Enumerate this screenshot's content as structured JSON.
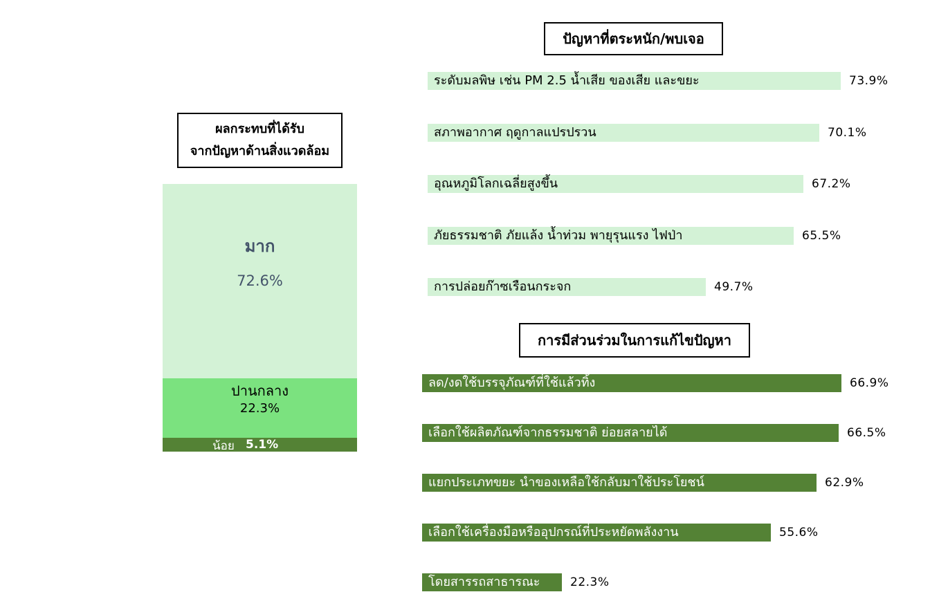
{
  "impact": {
    "title_line1": "ผลกระทบที่ได้รับ",
    "title_line2": "จากปัญหาด้านสิ่งแวดล้อม"
  },
  "problems": {
    "title": "ปัญหาที่ตระหนัก/พบเจอ"
  },
  "participation": {
    "title": "การมีส่วนร่วมในการแก้ไขปัญหา"
  },
  "colors": {
    "light_green": "#d3f2d6",
    "mid_green": "#7be27f",
    "dark_green": "#548235",
    "slate_text": "#44546a"
  },
  "chart_data": [
    {
      "type": "bar",
      "stacked": true,
      "orientation": "vertical",
      "title": "ผลกระทบที่ได้รับ จากปัญหาด้านสิ่งแวดล้อม",
      "series": [
        {
          "name": "มาก",
          "value": 72.6,
          "value_label": "72.6%",
          "color": "#d3f2d6"
        },
        {
          "name": "ปานกลาง",
          "value": 22.3,
          "value_label": "22.3%",
          "color": "#7be27f"
        },
        {
          "name": "น้อย",
          "value": 5.1,
          "value_label": "5.1%",
          "color": "#548235"
        }
      ]
    },
    {
      "type": "bar",
      "orientation": "horizontal",
      "title": "ปัญหาที่ตระหนัก/พบเจอ",
      "color": "#d3f2d6",
      "categories": [
        "ระดับมลพิษ เช่น PM 2.5 น้ำเสีย ของเสีย และขยะ",
        "สภาพอากาศ ฤดูกาลแปรปรวน",
        "อุณหภูมิโลกเฉลี่ยสูงขึ้น",
        "ภัยธรรมชาติ ภัยแล้ง น้ำท่วม พายุรุนแรง ไฟป่า",
        "การปล่อยก๊าซเรือนกระจก"
      ],
      "values": [
        73.9,
        70.1,
        67.2,
        65.5,
        49.7
      ],
      "value_labels": [
        "73.9%",
        "70.1%",
        "67.2%",
        "65.5%",
        "49.7%"
      ]
    },
    {
      "type": "bar",
      "orientation": "horizontal",
      "title": "การมีส่วนร่วมในการแก้ไขปัญหา",
      "color": "#548235",
      "categories": [
        "ลด/งดใช้บรรจุภัณฑ์ที่ใช้แล้วทิ้ง",
        "เลือกใช้ผลิตภัณฑ์จากธรรมชาติ ย่อยสลายได้",
        "แยกประเภทขยะ นำของเหลือใช้กลับมาใช้ประโยชน์",
        "เลือกใช้เครื่องมือหรืออุปกรณ์ที่ประหยัดพลังงาน",
        "โดยสารรถสาธารณะ"
      ],
      "values": [
        66.9,
        66.5,
        62.9,
        55.6,
        22.3
      ],
      "value_labels": [
        "66.9%",
        "66.5%",
        "62.9%",
        "55.6%",
        "22.3%"
      ]
    }
  ]
}
